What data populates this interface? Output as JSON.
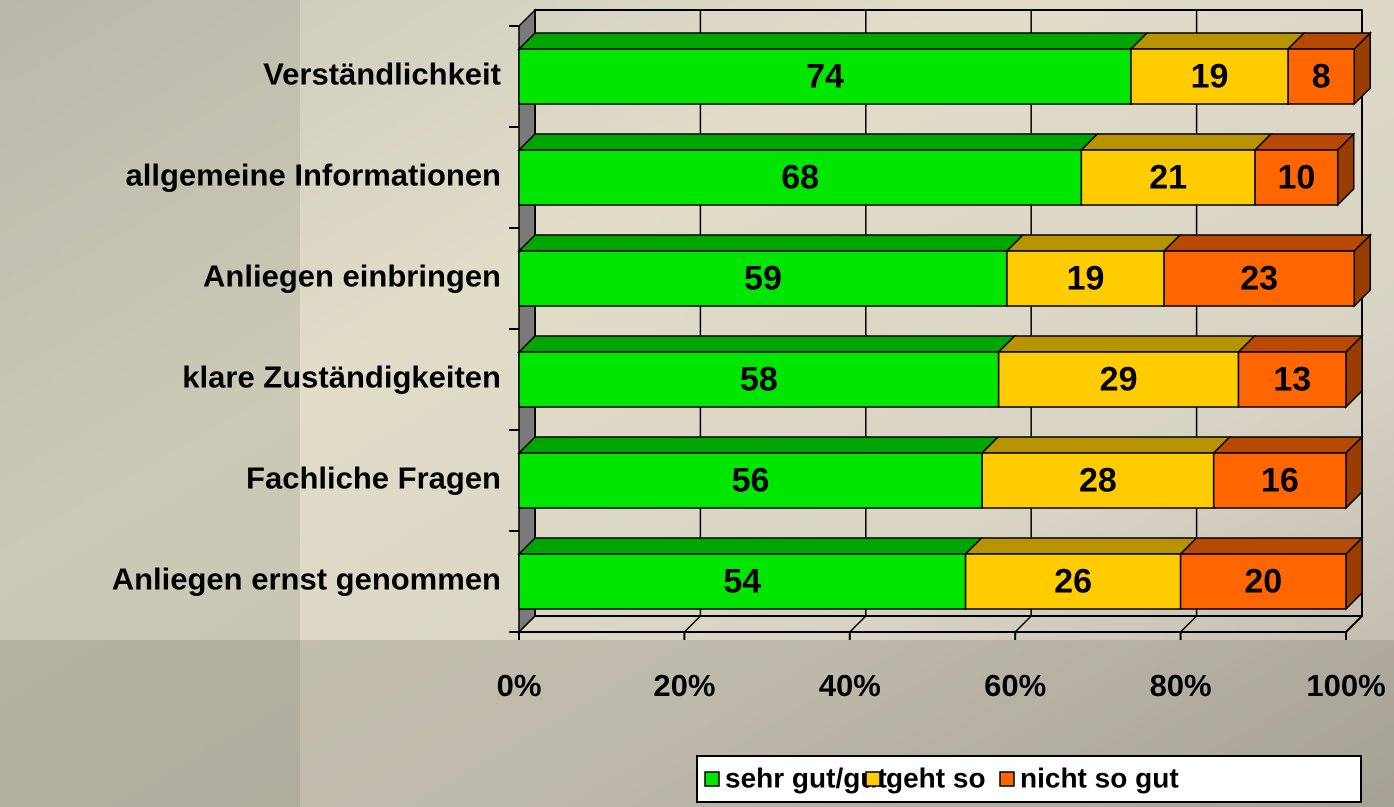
{
  "chart_data": {
    "type": "stacked-bar-3d",
    "categories": [
      "Verständlichkeit",
      "allgemeine Informationen",
      "Anliegen einbringen",
      "klare Zuständigkeiten",
      "Fachliche Fragen",
      "Anliegen ernst genommen"
    ],
    "series": [
      {
        "name": "sehr gut/gut",
        "color": "#00e600",
        "values": [
          74,
          68,
          59,
          58,
          56,
          54
        ]
      },
      {
        "name": "geht so",
        "color": "#ffcc00",
        "values": [
          19,
          21,
          19,
          29,
          28,
          26
        ]
      },
      {
        "name": "nicht so gut",
        "color": "#ff6600",
        "values": [
          8,
          10,
          23,
          13,
          16,
          20
        ]
      }
    ],
    "xlim": [
      0,
      100
    ],
    "xticks": [
      {
        "value": 0,
        "label": "0%"
      },
      {
        "value": 20,
        "label": "20%"
      },
      {
        "value": 40,
        "label": "40%"
      },
      {
        "value": 60,
        "label": "60%"
      },
      {
        "value": 80,
        "label": "80%"
      },
      {
        "value": 100,
        "label": "100%"
      }
    ],
    "grid": true,
    "legend": "bottom-right"
  }
}
